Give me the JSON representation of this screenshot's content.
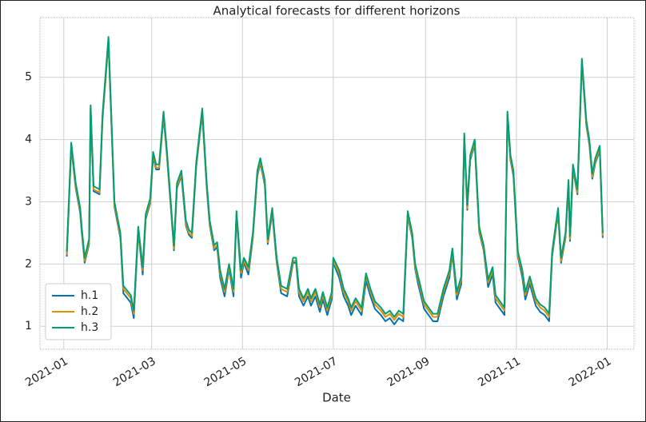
{
  "chart_data": {
    "type": "line",
    "title": "Analytical forecasts for different horizons",
    "xlabel": "Date",
    "xlim": [
      -16,
      383
    ],
    "xticks": [
      {
        "value": 0,
        "label": "2021-01"
      },
      {
        "value": 59,
        "label": "2021-03"
      },
      {
        "value": 120,
        "label": "2021-05"
      },
      {
        "value": 181,
        "label": "2021-07"
      },
      {
        "value": 243,
        "label": "2021-09"
      },
      {
        "value": 304,
        "label": "2021-11"
      },
      {
        "value": 365,
        "label": "2022-01"
      }
    ],
    "ylim": [
      0.63,
      5.96
    ],
    "yticks": [
      1,
      2,
      3,
      4,
      5
    ],
    "grid": true,
    "legend": "lower left",
    "x": [
      2,
      5,
      8,
      11,
      12,
      14,
      17,
      18,
      20,
      24,
      26,
      30,
      34,
      38,
      40,
      45,
      47,
      50,
      53,
      55,
      58,
      60,
      62,
      64,
      67,
      69,
      72,
      74,
      76,
      79,
      82,
      84,
      86,
      89,
      93,
      96,
      98,
      101,
      103,
      105,
      108,
      111,
      114,
      116,
      119,
      121,
      124,
      127,
      130,
      132,
      135,
      137,
      140,
      143,
      146,
      150,
      154,
      156,
      158,
      161,
      164,
      166,
      169,
      172,
      174,
      177,
      180,
      181,
      185,
      188,
      191,
      193,
      196,
      200,
      203,
      206,
      209,
      213,
      216,
      219,
      222,
      225,
      228,
      231,
      234,
      236,
      238,
      242,
      245,
      248,
      251,
      255,
      259,
      261,
      264,
      267,
      269,
      271,
      273,
      276,
      279,
      282,
      285,
      288,
      290,
      293,
      296,
      298,
      300,
      302,
      305,
      308,
      310,
      313,
      317,
      320,
      323,
      326,
      328,
      332,
      334,
      337,
      339,
      340,
      342,
      345,
      347,
      348,
      351,
      353,
      355,
      357,
      360,
      362
    ],
    "series": [
      {
        "name": "h.1",
        "color": "#0173b2",
        "values": [
          2.12,
          3.87,
          3.22,
          2.82,
          2.52,
          2.02,
          2.32,
          4.47,
          3.17,
          3.12,
          4.32,
          5.57,
          2.92,
          2.42,
          1.53,
          1.38,
          1.13,
          2.52,
          1.83,
          2.72,
          2.97,
          3.72,
          3.52,
          3.52,
          4.37,
          3.82,
          2.87,
          2.22,
          3.22,
          3.42,
          2.62,
          2.47,
          2.42,
          3.57,
          4.42,
          3.22,
          2.62,
          2.22,
          2.27,
          1.78,
          1.48,
          1.92,
          1.48,
          2.77,
          1.78,
          2.02,
          1.83,
          2.42,
          3.42,
          3.62,
          3.27,
          2.32,
          2.82,
          2.02,
          1.53,
          1.48,
          2.02,
          2.02,
          1.48,
          1.33,
          1.48,
          1.33,
          1.48,
          1.23,
          1.43,
          1.18,
          1.43,
          2.02,
          1.78,
          1.48,
          1.33,
          1.18,
          1.33,
          1.18,
          1.73,
          1.48,
          1.28,
          1.18,
          1.08,
          1.13,
          1.03,
          1.13,
          1.08,
          2.77,
          2.42,
          1.92,
          1.68,
          1.28,
          1.18,
          1.08,
          1.08,
          1.48,
          1.78,
          2.17,
          1.43,
          1.68,
          4.02,
          2.87,
          3.67,
          3.92,
          2.52,
          2.22,
          1.63,
          1.83,
          1.38,
          1.28,
          1.18,
          4.37,
          3.67,
          3.42,
          2.12,
          1.78,
          1.43,
          1.68,
          1.33,
          1.23,
          1.18,
          1.08,
          2.12,
          2.82,
          2.02,
          2.42,
          3.27,
          2.37,
          3.52,
          3.12,
          4.52,
          5.22,
          4.22,
          3.92,
          3.37,
          3.62,
          3.82,
          2.42
        ]
      },
      {
        "name": "h.2",
        "color": "#de8f05",
        "values": [
          2.15,
          3.9,
          3.25,
          2.85,
          2.55,
          2.05,
          2.35,
          4.5,
          3.2,
          3.15,
          4.35,
          5.6,
          2.95,
          2.45,
          1.6,
          1.45,
          1.2,
          2.55,
          1.9,
          2.75,
          3.0,
          3.75,
          3.55,
          3.55,
          4.4,
          3.85,
          2.9,
          2.25,
          3.25,
          3.45,
          2.65,
          2.5,
          2.45,
          3.6,
          4.45,
          3.25,
          2.65,
          2.25,
          2.3,
          1.85,
          1.55,
          1.95,
          1.55,
          2.8,
          1.85,
          2.05,
          1.9,
          2.45,
          3.45,
          3.65,
          3.3,
          2.35,
          2.85,
          2.05,
          1.6,
          1.55,
          2.05,
          2.05,
          1.55,
          1.4,
          1.55,
          1.4,
          1.55,
          1.3,
          1.5,
          1.25,
          1.5,
          2.05,
          1.85,
          1.55,
          1.4,
          1.25,
          1.4,
          1.25,
          1.8,
          1.55,
          1.35,
          1.25,
          1.15,
          1.2,
          1.1,
          1.2,
          1.15,
          2.8,
          2.45,
          1.95,
          1.75,
          1.35,
          1.25,
          1.15,
          1.15,
          1.55,
          1.85,
          2.2,
          1.5,
          1.75,
          4.05,
          2.9,
          3.7,
          3.95,
          2.55,
          2.25,
          1.7,
          1.9,
          1.45,
          1.35,
          1.25,
          4.4,
          3.7,
          3.45,
          2.15,
          1.85,
          1.5,
          1.75,
          1.4,
          1.3,
          1.25,
          1.15,
          2.15,
          2.85,
          2.05,
          2.45,
          3.3,
          2.4,
          3.55,
          3.15,
          4.55,
          5.25,
          4.25,
          3.95,
          3.4,
          3.65,
          3.85,
          2.45
        ]
      },
      {
        "name": "h.3",
        "color": "#029e73",
        "values": [
          2.2,
          3.95,
          3.3,
          2.9,
          2.6,
          2.1,
          2.4,
          4.55,
          3.25,
          3.2,
          4.4,
          5.65,
          3.0,
          2.5,
          1.65,
          1.5,
          1.25,
          2.6,
          1.95,
          2.8,
          3.05,
          3.8,
          3.6,
          3.6,
          4.45,
          3.9,
          2.95,
          2.3,
          3.3,
          3.5,
          2.7,
          2.55,
          2.5,
          3.65,
          4.5,
          3.3,
          2.7,
          2.3,
          2.35,
          1.9,
          1.6,
          2.0,
          1.6,
          2.85,
          1.9,
          2.1,
          1.95,
          2.5,
          3.5,
          3.7,
          3.35,
          2.4,
          2.9,
          2.1,
          1.65,
          1.6,
          2.1,
          2.1,
          1.6,
          1.45,
          1.6,
          1.45,
          1.6,
          1.35,
          1.55,
          1.3,
          1.55,
          2.1,
          1.9,
          1.6,
          1.45,
          1.3,
          1.45,
          1.3,
          1.85,
          1.6,
          1.4,
          1.3,
          1.2,
          1.25,
          1.15,
          1.25,
          1.2,
          2.85,
          2.5,
          2.0,
          1.8,
          1.4,
          1.3,
          1.2,
          1.2,
          1.6,
          1.9,
          2.25,
          1.55,
          1.8,
          4.1,
          2.95,
          3.75,
          4.0,
          2.6,
          2.3,
          1.75,
          1.95,
          1.5,
          1.4,
          1.3,
          4.45,
          3.75,
          3.5,
          2.2,
          1.9,
          1.55,
          1.8,
          1.45,
          1.35,
          1.3,
          1.2,
          2.2,
          2.9,
          2.1,
          2.5,
          3.35,
          2.45,
          3.6,
          3.2,
          4.6,
          5.3,
          4.3,
          4.0,
          3.45,
          3.7,
          3.9,
          2.5
        ]
      }
    ]
  }
}
